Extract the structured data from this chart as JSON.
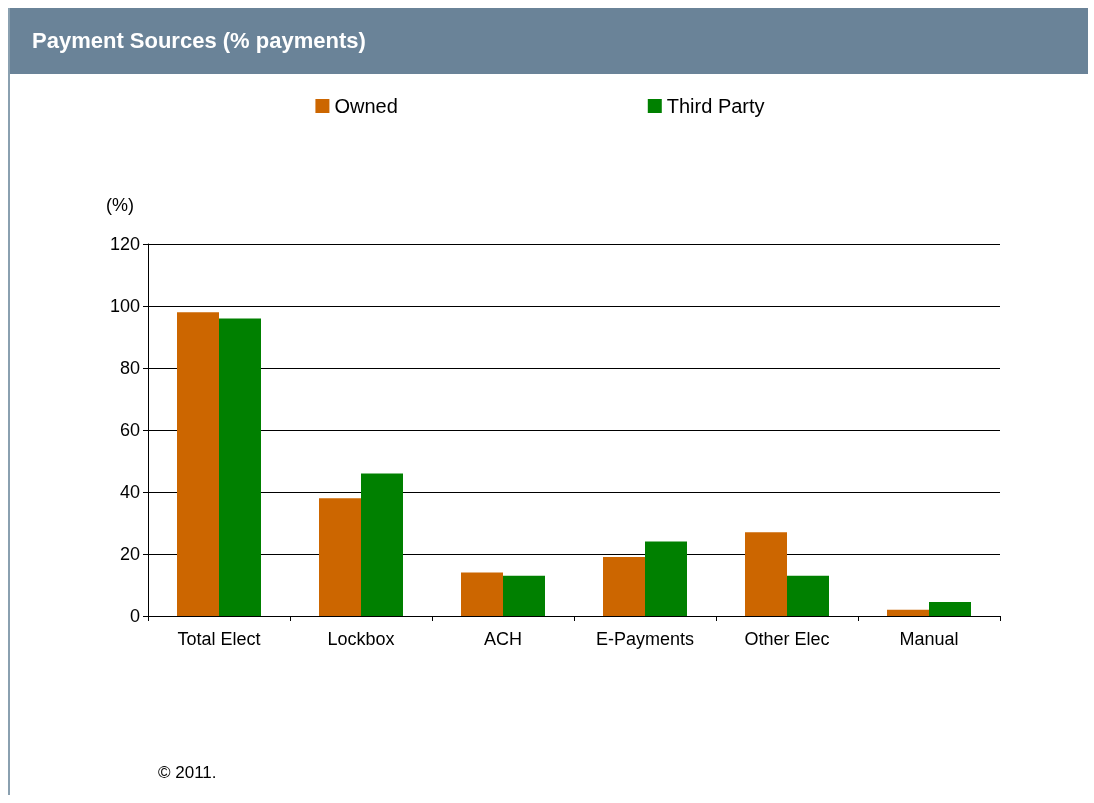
{
  "chart_data": {
    "type": "bar",
    "title": "Payment Sources (% payments)",
    "ylabel": "(%)",
    "categories": [
      "Total Elect",
      "Lockbox",
      "ACH",
      "E-Payments",
      "Other Elec",
      "Manual"
    ],
    "series": [
      {
        "name": "Owned",
        "color": "#cc6600",
        "values": [
          98,
          38,
          14,
          19,
          27,
          2
        ]
      },
      {
        "name": "Third Party",
        "color": "#008000",
        "values": [
          96,
          46,
          13,
          24,
          13,
          4.5
        ]
      }
    ],
    "ylim": [
      0,
      120
    ],
    "yticks": [
      0,
      20,
      40,
      60,
      80,
      100,
      120
    ],
    "grid": "y",
    "legend": "top",
    "annotations": [
      "© 2011."
    ]
  }
}
